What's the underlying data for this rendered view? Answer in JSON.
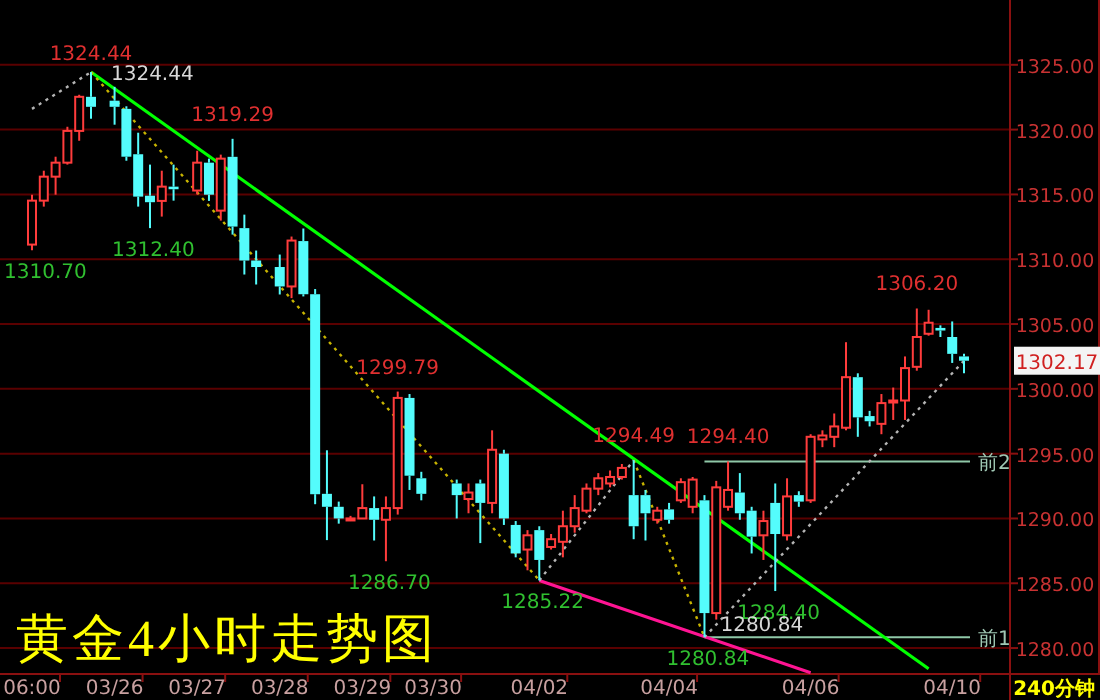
{
  "chart_data": {
    "type": "candlestick",
    "title": "黄金4小时走势图",
    "categories": [
      "06:00",
      null,
      null,
      null,
      null,
      null,
      null,
      "03/26",
      null,
      null,
      null,
      null,
      null,
      null,
      "03/27",
      null,
      null,
      null,
      null,
      null,
      null,
      "03/28",
      null,
      null,
      null,
      null,
      null,
      null,
      "03/29",
      null,
      null,
      null,
      null,
      null,
      "03/30",
      null,
      null,
      null,
      null,
      null,
      null,
      null,
      null,
      "04/02",
      null,
      null,
      null,
      null,
      null,
      null,
      null,
      null,
      null,
      null,
      "04/04",
      null,
      null,
      null,
      null,
      null,
      null,
      null,
      null,
      null,
      null,
      null,
      "04/06",
      null,
      null,
      null,
      null,
      null,
      null,
      null,
      null,
      null,
      null,
      null,
      "04/10",
      null
    ],
    "ohlc": [
      [
        1311.13,
        1314.98,
        1310.7,
        1314.52
      ],
      [
        1314.52,
        1316.83,
        1314.06,
        1316.37
      ],
      [
        1316.37,
        1317.91,
        1314.98,
        1317.45
      ],
      [
        1317.45,
        1320.22,
        1317.3,
        1319.9
      ],
      [
        1319.9,
        1322.69,
        1319.14,
        1322.53
      ],
      [
        1322.53,
        1324.44,
        1320.84,
        1321.76
      ],
      null,
      [
        1322.23,
        1323.3,
        1320.38,
        1321.76
      ],
      [
        1321.6,
        1321.8,
        1317.6,
        1317.91
      ],
      [
        1318.1,
        1319.76,
        1314.06,
        1314.83
      ],
      [
        1314.9,
        1317.3,
        1312.4,
        1314.4
      ],
      [
        1314.5,
        1316.83,
        1313.29,
        1315.6
      ],
      [
        1315.6,
        1317.3,
        1314.52,
        1315.4
      ],
      null,
      [
        1315.3,
        1318.37,
        1315.0,
        1317.45
      ],
      [
        1317.45,
        1317.76,
        1314.5,
        1314.98
      ],
      [
        1313.75,
        1318.07,
        1312.98,
        1317.76
      ],
      [
        1317.9,
        1319.29,
        1311.9,
        1312.52
      ],
      [
        1312.4,
        1313.44,
        1308.82,
        1309.9
      ],
      [
        1309.9,
        1310.67,
        1308.05,
        1309.4
      ],
      null,
      [
        1309.4,
        1310.36,
        1307.28,
        1307.9
      ],
      [
        1307.9,
        1311.75,
        1307.0,
        1311.44
      ],
      [
        1311.4,
        1312.37,
        1307.13,
        1307.3
      ],
      [
        1307.3,
        1307.7,
        1291.1,
        1291.87
      ],
      [
        1291.9,
        1295.26,
        1288.33,
        1290.9
      ],
      [
        1290.9,
        1291.3,
        1289.6,
        1290.0
      ],
      [
        1290.0,
        1290.2,
        1289.8,
        1290.0
      ],
      [
        1290.0,
        1292.64,
        1290.0,
        1290.8
      ],
      [
        1290.8,
        1291.7,
        1288.3,
        1289.9
      ],
      [
        1289.9,
        1291.7,
        1286.7,
        1290.8
      ],
      [
        1290.8,
        1299.79,
        1290.3,
        1299.3
      ],
      [
        1299.3,
        1299.6,
        1292.2,
        1293.3
      ],
      [
        1293.1,
        1293.6,
        1291.4,
        1291.9
      ],
      null,
      null,
      [
        1292.7,
        1293.0,
        1290.0,
        1291.8
      ],
      [
        1291.5,
        1292.7,
        1290.4,
        1292.0
      ],
      [
        1292.7,
        1293.0,
        1288.1,
        1291.2
      ],
      [
        1291.2,
        1296.8,
        1290.4,
        1295.3
      ],
      [
        1295.0,
        1295.3,
        1289.5,
        1290.0
      ],
      [
        1289.5,
        1289.8,
        1287.0,
        1287.3
      ],
      [
        1287.6,
        1289.1,
        1286.0,
        1288.7
      ],
      [
        1289.1,
        1289.4,
        1285.22,
        1286.8
      ],
      [
        1287.8,
        1288.8,
        1287.6,
        1288.4
      ],
      [
        1288.2,
        1290.6,
        1287.0,
        1289.4
      ],
      [
        1289.4,
        1291.8,
        1288.9,
        1290.8
      ],
      [
        1290.6,
        1292.7,
        1290.4,
        1292.3
      ],
      [
        1292.3,
        1293.5,
        1291.8,
        1293.1
      ],
      [
        1292.7,
        1293.7,
        1292.4,
        1293.2
      ],
      [
        1293.2,
        1294.2,
        1293.0,
        1293.9
      ],
      [
        1291.8,
        1294.49,
        1288.4,
        1289.4
      ],
      [
        1291.8,
        1292.2,
        1288.3,
        1290.4
      ],
      [
        1289.9,
        1290.9,
        1289.6,
        1290.6
      ],
      [
        1290.7,
        1291.2,
        1289.6,
        1289.9
      ],
      [
        1291.4,
        1293.1,
        1291.2,
        1292.8
      ],
      [
        1290.9,
        1293.2,
        1290.4,
        1293.0
      ],
      [
        1291.4,
        1291.8,
        1280.84,
        1282.7
      ],
      [
        1282.7,
        1292.9,
        1282.2,
        1292.4
      ],
      [
        1290.9,
        1294.4,
        1290.6,
        1292.2
      ],
      [
        1292.0,
        1293.5,
        1289.9,
        1290.4
      ],
      [
        1290.6,
        1290.9,
        1287.3,
        1288.6
      ],
      [
        1288.7,
        1290.6,
        1286.8,
        1289.8
      ],
      [
        1291.2,
        1292.7,
        1284.4,
        1288.8
      ],
      [
        1288.7,
        1293.1,
        1288.3,
        1291.7
      ],
      [
        1291.8,
        1292.1,
        1290.9,
        1291.3
      ],
      [
        1291.4,
        1296.5,
        1291.2,
        1296.3
      ],
      [
        1296.1,
        1296.8,
        1295.5,
        1296.4
      ],
      [
        1296.3,
        1298.1,
        1295.5,
        1297.1
      ],
      [
        1297.0,
        1303.6,
        1296.8,
        1300.9
      ],
      [
        1300.9,
        1301.2,
        1296.3,
        1297.8
      ],
      [
        1297.9,
        1298.3,
        1297.1,
        1297.5
      ],
      [
        1297.3,
        1299.6,
        1296.5,
        1298.9
      ],
      [
        1299.0,
        1300.1,
        1297.6,
        1299.1
      ],
      [
        1299.1,
        1302.5,
        1297.6,
        1301.6
      ],
      [
        1301.7,
        1306.2,
        1301.4,
        1304.0
      ],
      [
        1304.25,
        1306.1,
        1304.1,
        1305.1
      ],
      [
        1304.7,
        1304.9,
        1304.0,
        1304.5
      ],
      [
        1304.0,
        1305.2,
        1302.0,
        1302.7
      ],
      [
        1302.5,
        1302.7,
        1301.2,
        1302.17
      ]
    ],
    "series": [
      {
        "type": "line",
        "values": [
          null,
          null,
          null,
          null,
          null,
          1324.44,
          null,
          null,
          null,
          null,
          null,
          null,
          null,
          null,
          null,
          null,
          null,
          null,
          null,
          null,
          null,
          null,
          null,
          null,
          null,
          null,
          null,
          null,
          null,
          null,
          null,
          null,
          null,
          null,
          null,
          null,
          null,
          null,
          null,
          null,
          null,
          null,
          null,
          null,
          null,
          null,
          null,
          null,
          null,
          null,
          null,
          null,
          null,
          null,
          null,
          null,
          null,
          null,
          null,
          null,
          null,
          null,
          null,
          null,
          null,
          null,
          null,
          null,
          null,
          null,
          null,
          null,
          null,
          null,
          null,
          null,
          1278.4,
          null,
          null,
          null
        ],
        "color": "#00ff00",
        "line_style": "solid"
      },
      {
        "type": "line",
        "values": [
          null,
          null,
          null,
          null,
          null,
          null,
          null,
          null,
          null,
          null,
          null,
          null,
          null,
          null,
          null,
          null,
          null,
          null,
          null,
          null,
          null,
          null,
          null,
          null,
          null,
          null,
          null,
          null,
          null,
          null,
          null,
          null,
          null,
          null,
          null,
          null,
          null,
          null,
          null,
          null,
          null,
          null,
          null,
          1285.22,
          null,
          null,
          null,
          null,
          null,
          null,
          null,
          null,
          null,
          null,
          null,
          null,
          null,
          null,
          null,
          null,
          null,
          null,
          null,
          null,
          null,
          null,
          1278.1,
          null,
          null,
          null,
          null,
          null,
          null,
          null,
          null,
          null,
          null,
          null,
          null,
          null
        ],
        "color": "#ff1493",
        "line_style": "solid"
      },
      {
        "type": "line",
        "values": [
          null,
          null,
          null,
          null,
          null,
          1324.44,
          null,
          null,
          null,
          null,
          null,
          null,
          null,
          null,
          null,
          null,
          null,
          null,
          null,
          null,
          null,
          null,
          null,
          null,
          null,
          null,
          null,
          null,
          null,
          null,
          null,
          null,
          null,
          null,
          null,
          null,
          null,
          null,
          null,
          null,
          null,
          null,
          null,
          1285.22,
          null,
          null,
          null,
          null,
          null,
          null,
          null,
          null,
          null,
          null,
          null,
          null,
          null,
          null,
          null,
          null,
          null,
          null,
          null,
          null,
          null,
          null,
          null,
          null,
          null,
          null,
          null,
          null,
          null,
          null,
          null,
          null,
          null,
          null,
          null,
          null
        ],
        "color": "#c8b400",
        "line_style": "dotted"
      },
      {
        "type": "line",
        "values": [
          null,
          null,
          null,
          null,
          null,
          null,
          null,
          null,
          null,
          null,
          null,
          null,
          null,
          null,
          null,
          null,
          null,
          null,
          null,
          null,
          null,
          null,
          null,
          null,
          null,
          null,
          null,
          null,
          null,
          null,
          null,
          null,
          null,
          null,
          null,
          null,
          null,
          null,
          null,
          null,
          null,
          null,
          null,
          null,
          null,
          null,
          null,
          null,
          null,
          null,
          null,
          1294.49,
          null,
          null,
          null,
          null,
          null,
          1280.84,
          null,
          null,
          null,
          null,
          null,
          null,
          null,
          null,
          null,
          null,
          null,
          null,
          null,
          null,
          null,
          null,
          null,
          null,
          null,
          null,
          null,
          null
        ],
        "color": "#c8b400",
        "line_style": "dotted"
      },
      {
        "type": "line",
        "values": [
          1321.6,
          null,
          null,
          null,
          null,
          1324.44,
          null,
          null,
          null,
          null,
          null,
          null,
          null,
          null,
          null,
          null,
          null,
          null,
          null,
          null,
          null,
          null,
          null,
          null,
          null,
          null,
          null,
          null,
          null,
          null,
          null,
          null,
          null,
          null,
          null,
          null,
          null,
          null,
          null,
          null,
          null,
          null,
          null,
          null,
          null,
          null,
          null,
          null,
          null,
          null,
          null,
          null,
          null,
          null,
          null,
          null,
          null,
          null,
          null,
          null,
          null,
          null,
          null,
          null,
          null,
          null,
          null,
          null,
          null,
          null,
          null,
          null,
          null,
          null,
          null,
          null,
          null,
          null,
          null,
          null
        ],
        "color": "#b4b4b4",
        "line_style": "dotted"
      },
      {
        "type": "line",
        "values": [
          null,
          null,
          null,
          null,
          null,
          null,
          null,
          null,
          null,
          null,
          null,
          null,
          null,
          null,
          null,
          null,
          null,
          null,
          null,
          null,
          null,
          null,
          null,
          null,
          null,
          null,
          null,
          null,
          null,
          null,
          null,
          null,
          null,
          null,
          null,
          null,
          null,
          null,
          null,
          null,
          null,
          null,
          null,
          1285.22,
          null,
          null,
          null,
          null,
          null,
          null,
          null,
          1294.49,
          null,
          null,
          null,
          null,
          null,
          null,
          null,
          null,
          null,
          null,
          null,
          null,
          null,
          null,
          null,
          null,
          null,
          null,
          null,
          null,
          null,
          null,
          null,
          null,
          null,
          null,
          null,
          null
        ],
        "color": "#b4b4b4",
        "line_style": "dotted"
      },
      {
        "type": "line",
        "values": [
          null,
          null,
          null,
          null,
          null,
          null,
          null,
          null,
          null,
          null,
          null,
          null,
          null,
          null,
          null,
          null,
          null,
          null,
          null,
          null,
          null,
          null,
          null,
          null,
          null,
          null,
          null,
          null,
          null,
          null,
          null,
          null,
          null,
          null,
          null,
          null,
          null,
          null,
          null,
          null,
          null,
          null,
          null,
          null,
          null,
          null,
          null,
          null,
          null,
          null,
          null,
          null,
          null,
          null,
          null,
          null,
          null,
          1280.84,
          null,
          null,
          null,
          null,
          null,
          null,
          null,
          null,
          null,
          null,
          null,
          null,
          null,
          null,
          null,
          null,
          null,
          null,
          null,
          null,
          null,
          1302.17
        ],
        "color": "#b4b4b4",
        "line_style": "dotted"
      }
    ],
    "ylim": [
      1278,
      1330
    ],
    "yticks": [
      {
        "value": 1280,
        "label": "1280.00"
      },
      {
        "value": 1285,
        "label": "1285.00"
      },
      {
        "value": 1290,
        "label": "1290.00"
      },
      {
        "value": 1295,
        "label": "1295.00"
      },
      {
        "value": 1300,
        "label": "1300.00"
      },
      {
        "value": 1305,
        "label": "1305.00"
      },
      {
        "value": 1310,
        "label": "1310.00"
      },
      {
        "value": 1315,
        "label": "1315.00"
      },
      {
        "value": 1320,
        "label": "1320.00"
      },
      {
        "value": 1325,
        "label": "1325.00"
      }
    ],
    "grid": "y",
    "ref_lines": [
      {
        "axis": "y",
        "value": 1294.4,
        "label": "前2",
        "color": "#8fc8a8"
      },
      {
        "axis": "y",
        "value": 1280.84,
        "label": "前1",
        "color": "#8fc8a8"
      }
    ],
    "annotations": [
      "1324.44",
      "1324.44",
      {
        "text": "1319.29",
        "y": 1319.29
      },
      "1310.70",
      {
        "text": "1312.40",
        "y": 1312.4
      },
      {
        "text": "1299.79",
        "y": 1299.79
      },
      {
        "text": "1286.70",
        "y": 1286.7
      },
      {
        "text": "1285.22",
        "y": 1285.22
      },
      {
        "text": "1294.49",
        "y": 1294.49
      },
      {
        "text": "1294.40",
        "y": 1294.4
      },
      {
        "text": "1284.40",
        "y": 1284.4
      },
      {
        "text": "1280.84",
        "y": 1280.84
      },
      {
        "text": "1280.84",
        "y": 1280.84
      },
      {
        "text": "1306.20",
        "y": 1306.2
      },
      "1302.17",
      "240分钟"
    ]
  }
}
